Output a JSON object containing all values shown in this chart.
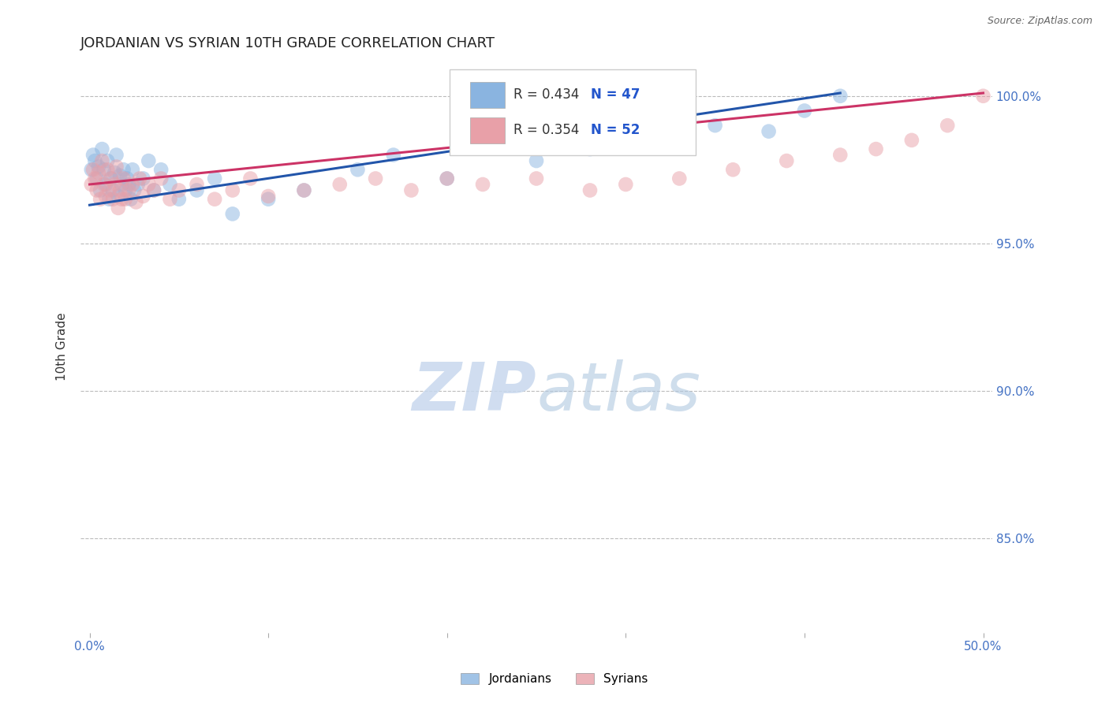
{
  "title": "JORDANIAN VS SYRIAN 10TH GRADE CORRELATION CHART",
  "source": "Source: ZipAtlas.com",
  "ylabel_label": "10th Grade",
  "xlim": [
    -0.005,
    0.505
  ],
  "ylim": [
    0.818,
    1.012
  ],
  "x_tick_positions": [
    0.0,
    0.1,
    0.2,
    0.3,
    0.4,
    0.5
  ],
  "x_tick_labels": [
    "0.0%",
    "",
    "",
    "",
    "",
    "50.0%"
  ],
  "y_tick_positions": [
    0.85,
    0.9,
    0.95,
    1.0
  ],
  "y_tick_labels": [
    "85.0%",
    "90.0%",
    "95.0%",
    "100.0%"
  ],
  "jordanian_color": "#8ab4e0",
  "syrian_color": "#e8a0a8",
  "jordanian_line_color": "#2255aa",
  "syrian_line_color": "#cc3366",
  "background_color": "#ffffff",
  "grid_color": "#bbbbbb",
  "title_fontsize": 13,
  "tick_label_color": "#4472c4",
  "tick_label_fontsize": 11,
  "watermark_text": "ZIPatlas",
  "watermark_color": "#c8d8ee",
  "legend_r1": "R = 0.434",
  "legend_n1": "N = 47",
  "legend_r2": "R = 0.354",
  "legend_n2": "N = 52",
  "legend_r_color": "#333333",
  "legend_n_color": "#2255cc",
  "jordanian_x": [
    0.001,
    0.002,
    0.003,
    0.004,
    0.005,
    0.006,
    0.007,
    0.008,
    0.009,
    0.01,
    0.011,
    0.012,
    0.013,
    0.014,
    0.015,
    0.016,
    0.017,
    0.018,
    0.019,
    0.02,
    0.021,
    0.022,
    0.023,
    0.024,
    0.025,
    0.027,
    0.03,
    0.033,
    0.036,
    0.04,
    0.045,
    0.05,
    0.06,
    0.07,
    0.08,
    0.1,
    0.12,
    0.15,
    0.17,
    0.2,
    0.25,
    0.28,
    0.32,
    0.35,
    0.38,
    0.4,
    0.42
  ],
  "jordanian_y": [
    0.975,
    0.98,
    0.978,
    0.972,
    0.976,
    0.968,
    0.982,
    0.975,
    0.97,
    0.978,
    0.965,
    0.972,
    0.968,
    0.974,
    0.98,
    0.966,
    0.973,
    0.97,
    0.975,
    0.968,
    0.972,
    0.97,
    0.965,
    0.975,
    0.968,
    0.97,
    0.972,
    0.978,
    0.968,
    0.975,
    0.97,
    0.965,
    0.968,
    0.972,
    0.96,
    0.965,
    0.968,
    0.975,
    0.98,
    0.972,
    0.978,
    0.982,
    0.985,
    0.99,
    0.988,
    0.995,
    1.0
  ],
  "syrian_x": [
    0.001,
    0.002,
    0.003,
    0.004,
    0.005,
    0.006,
    0.007,
    0.008,
    0.009,
    0.01,
    0.011,
    0.012,
    0.013,
    0.014,
    0.015,
    0.016,
    0.017,
    0.018,
    0.019,
    0.02,
    0.022,
    0.024,
    0.026,
    0.028,
    0.03,
    0.033,
    0.036,
    0.04,
    0.045,
    0.05,
    0.06,
    0.07,
    0.08,
    0.09,
    0.1,
    0.12,
    0.14,
    0.16,
    0.18,
    0.2,
    0.22,
    0.25,
    0.28,
    0.3,
    0.33,
    0.36,
    0.39,
    0.42,
    0.44,
    0.46,
    0.48,
    0.5
  ],
  "syrian_y": [
    0.97,
    0.975,
    0.972,
    0.968,
    0.974,
    0.965,
    0.978,
    0.97,
    0.966,
    0.975,
    0.968,
    0.972,
    0.965,
    0.97,
    0.976,
    0.962,
    0.968,
    0.965,
    0.972,
    0.965,
    0.968,
    0.97,
    0.964,
    0.972,
    0.966,
    0.97,
    0.968,
    0.972,
    0.965,
    0.968,
    0.97,
    0.965,
    0.968,
    0.972,
    0.966,
    0.968,
    0.97,
    0.972,
    0.968,
    0.972,
    0.97,
    0.972,
    0.968,
    0.97,
    0.972,
    0.975,
    0.978,
    0.98,
    0.982,
    0.985,
    0.99,
    1.0
  ],
  "scatter_size": 180,
  "scatter_alpha": 0.5,
  "line_width": 2.2,
  "jord_line_x": [
    0.0,
    0.42
  ],
  "jord_line_y": [
    0.963,
    1.001
  ],
  "syr_line_x": [
    0.0,
    0.5
  ],
  "syr_line_y": [
    0.97,
    1.001
  ]
}
